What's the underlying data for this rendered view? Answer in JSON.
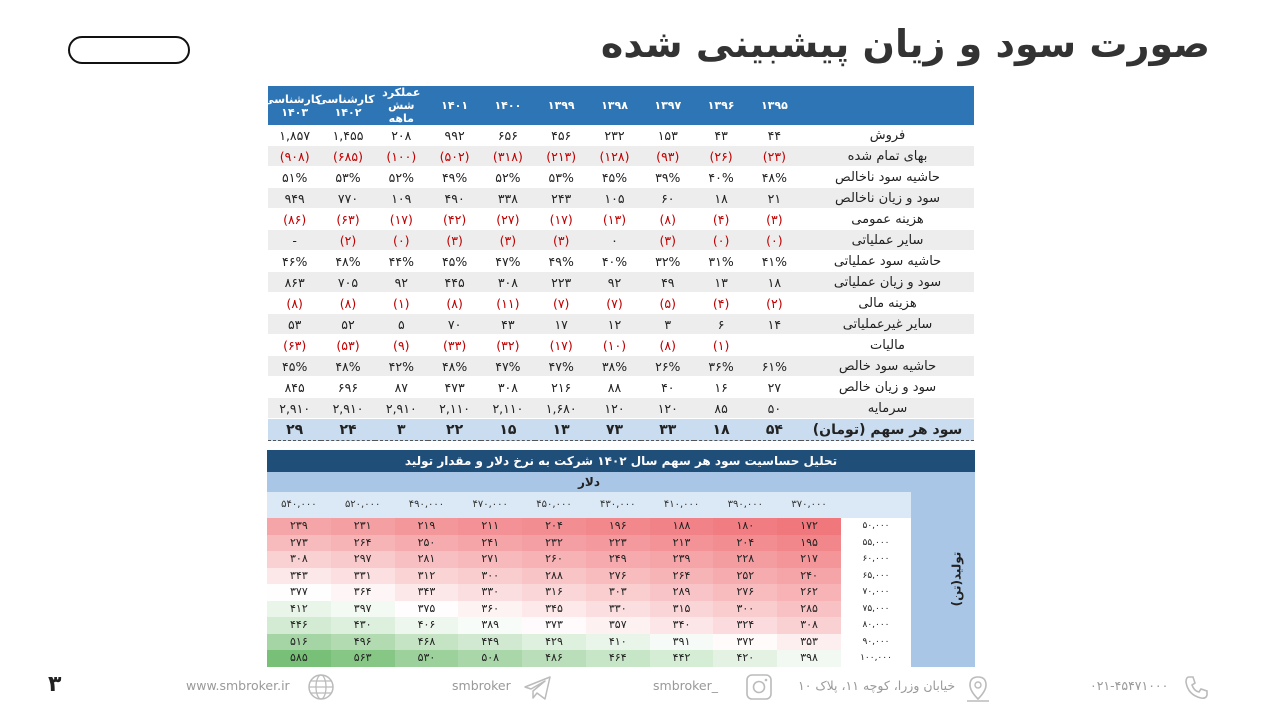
{
  "title": "صورت سود و زیان پیشبینی شده",
  "page_number": "۳",
  "table": {
    "headers": [
      "",
      "۱۳۹۵",
      "۱۳۹۶",
      "۱۳۹۷",
      "۱۳۹۸",
      "۱۳۹۹",
      "۱۴۰۰",
      "۱۴۰۱",
      "عملکرد شش ماهه",
      "کارشناسی ۱۴۰۲",
      "کارشناسی ۱۴۰۳"
    ],
    "rows": [
      {
        "label": "فروش",
        "values": [
          "۴۴",
          "۴۳",
          "۱۵۳",
          "۲۳۲",
          "۴۵۶",
          "۶۵۶",
          "۹۹۲",
          "۲۰۸",
          "۱,۴۵۵",
          "۱,۸۵۷"
        ]
      },
      {
        "label": "بهای تمام شده",
        "neg": true,
        "values": [
          "(۲۳)",
          "(۲۶)",
          "(۹۳)",
          "(۱۲۸)",
          "(۲۱۳)",
          "(۳۱۸)",
          "(۵۰۲)",
          "(۱۰۰)",
          "(۶۸۵)",
          "(۹۰۸)"
        ]
      },
      {
        "label": "حاشیه سود ناخالص",
        "values": [
          "۴۸%",
          "۴۰%",
          "۳۹%",
          "۴۵%",
          "۵۳%",
          "۵۲%",
          "۴۹%",
          "۵۲%",
          "۵۳%",
          "۵۱%"
        ]
      },
      {
        "label": "سود و زیان ناخالص",
        "values": [
          "۲۱",
          "۱۸",
          "۶۰",
          "۱۰۵",
          "۲۴۳",
          "۳۳۸",
          "۴۹۰",
          "۱۰۹",
          "۷۷۰",
          "۹۴۹"
        ]
      },
      {
        "label": "هزینه عمومی",
        "neg": true,
        "values": [
          "(۳)",
          "(۴)",
          "(۸)",
          "(۱۳)",
          "(۱۷)",
          "(۲۷)",
          "(۴۲)",
          "(۱۷)",
          "(۶۳)",
          "(۸۶)"
        ]
      },
      {
        "label": "سایر عملیاتی",
        "neg": true,
        "values": [
          "(۰)",
          "(۰)",
          "(۳)",
          "۰",
          "(۳)",
          "(۳)",
          "(۳)",
          "(۰)",
          "(۲)",
          "-"
        ]
      },
      {
        "label": "حاشیه سود عملیاتی",
        "values": [
          "۴۱%",
          "۳۱%",
          "۳۲%",
          "۴۰%",
          "۴۹%",
          "۴۷%",
          "۴۵%",
          "۴۴%",
          "۴۸%",
          "۴۶%"
        ]
      },
      {
        "label": "سود و زیان عملیاتی",
        "values": [
          "۱۸",
          "۱۳",
          "۴۹",
          "۹۲",
          "۲۲۳",
          "۳۰۸",
          "۴۴۵",
          "۹۲",
          "۷۰۵",
          "۸۶۳"
        ]
      },
      {
        "label": "هزینه مالی",
        "neg": true,
        "values": [
          "(۲)",
          "(۴)",
          "(۵)",
          "(۷)",
          "(۷)",
          "(۱۱)",
          "(۸)",
          "(۱)",
          "(۸)",
          "(۸)"
        ]
      },
      {
        "label": "سایر غیرعملیاتی",
        "values": [
          "۱۴",
          "۶",
          "۳",
          "۱۲",
          "۱۷",
          "۴۳",
          "۷۰",
          "۵",
          "۵۲",
          "۵۳"
        ]
      },
      {
        "label": "مالیات",
        "neg": true,
        "values": [
          "",
          "(۱)",
          "(۸)",
          "(۱۰)",
          "(۱۷)",
          "(۳۲)",
          "(۳۳)",
          "(۹)",
          "(۵۳)",
          "(۶۳)"
        ]
      },
      {
        "label": "حاشیه سود خالص",
        "values": [
          "۶۱%",
          "۳۶%",
          "۲۶%",
          "۳۸%",
          "۴۷%",
          "۴۷%",
          "۴۸%",
          "۴۲%",
          "۴۸%",
          "۴۵%"
        ]
      },
      {
        "label": "سود و زیان خالص",
        "values": [
          "۲۷",
          "۱۶",
          "۴۰",
          "۸۸",
          "۲۱۶",
          "۳۰۸",
          "۴۷۳",
          "۸۷",
          "۶۹۶",
          "۸۴۵"
        ]
      },
      {
        "label": "سرمایه",
        "values": [
          "۵۰",
          "۸۵",
          "۱۲۰",
          "۱۲۰",
          "۱,۶۸۰",
          "۲,۱۱۰",
          "۲,۱۱۰",
          "۲,۹۱۰",
          "۲,۹۱۰",
          "۲,۹۱۰"
        ]
      }
    ],
    "eps": {
      "label": "سود هر سهم (تومان)",
      "values": [
        "۵۴",
        "۱۸",
        "۳۳",
        "۷۳",
        "۱۳",
        "۱۵",
        "۲۲",
        "۳",
        "۲۴",
        "۲۹"
      ]
    }
  },
  "sensitivity": {
    "title": "تحلیل حساسیت سود هر سهم سال ۱۴۰۲  شرکت به نرخ دلار و مقدار تولید",
    "col_axis_label": "دلار",
    "row_axis_label": "تولید(تن)",
    "columns": [
      "۳۷۰,۰۰۰",
      "۳۹۰,۰۰۰",
      "۴۱۰,۰۰۰",
      "۴۳۰,۰۰۰",
      "۴۵۰,۰۰۰",
      "۴۷۰,۰۰۰",
      "۴۹۰,۰۰۰",
      "۵۲۰,۰۰۰",
      "۵۴۰,۰۰۰"
    ],
    "rows": [
      {
        "label": "۵۰,۰۰۰",
        "values": [
          "۱۷۲",
          "۱۸۰",
          "۱۸۸",
          "۱۹۶",
          "۲۰۴",
          "۲۱۱",
          "۲۱۹",
          "۲۳۱",
          "۲۳۹"
        ],
        "nums": [
          172,
          180,
          188,
          196,
          204,
          211,
          219,
          231,
          239
        ]
      },
      {
        "label": "۵۵,۰۰۰",
        "values": [
          "۱۹۵",
          "۲۰۴",
          "۲۱۳",
          "۲۲۳",
          "۲۳۲",
          "۲۴۱",
          "۲۵۰",
          "۲۶۴",
          "۲۷۳"
        ],
        "nums": [
          195,
          204,
          213,
          223,
          232,
          241,
          250,
          264,
          273
        ]
      },
      {
        "label": "۶۰,۰۰۰",
        "values": [
          "۲۱۷",
          "۲۲۸",
          "۲۳۹",
          "۲۴۹",
          "۲۶۰",
          "۲۷۱",
          "۲۸۱",
          "۲۹۷",
          "۳۰۸"
        ],
        "nums": [
          217,
          228,
          239,
          249,
          260,
          271,
          281,
          297,
          308
        ]
      },
      {
        "label": "۶۵,۰۰۰",
        "values": [
          "۲۴۰",
          "۲۵۲",
          "۲۶۴",
          "۲۷۶",
          "۲۸۸",
          "۳۰۰",
          "۳۱۲",
          "۳۳۱",
          "۳۴۳"
        ],
        "nums": [
          240,
          252,
          264,
          276,
          288,
          300,
          312,
          331,
          343
        ]
      },
      {
        "label": "۷۰,۰۰۰",
        "values": [
          "۲۶۲",
          "۲۷۶",
          "۲۸۹",
          "۳۰۳",
          "۳۱۶",
          "۳۳۰",
          "۳۴۳",
          "۳۶۴",
          "۳۷۷"
        ],
        "nums": [
          262,
          276,
          289,
          303,
          316,
          330,
          343,
          364,
          377
        ]
      },
      {
        "label": "۷۵,۰۰۰",
        "values": [
          "۲۸۵",
          "۳۰۰",
          "۳۱۵",
          "۳۳۰",
          "۳۴۵",
          "۳۶۰",
          "۳۷۵",
          "۳۹۷",
          "۴۱۲"
        ],
        "nums": [
          285,
          300,
          315,
          330,
          345,
          360,
          375,
          397,
          412
        ]
      },
      {
        "label": "۸۰,۰۰۰",
        "values": [
          "۳۰۸",
          "۳۲۴",
          "۳۴۰",
          "۳۵۷",
          "۳۷۳",
          "۳۸۹",
          "۴۰۶",
          "۴۳۰",
          "۴۴۶"
        ],
        "nums": [
          308,
          324,
          340,
          357,
          373,
          389,
          406,
          430,
          446
        ]
      },
      {
        "label": "۹۰,۰۰۰",
        "values": [
          "۳۵۳",
          "۳۷۲",
          "۳۹۱",
          "۴۱۰",
          "۴۲۹",
          "۴۴۹",
          "۴۶۸",
          "۴۹۶",
          "۵۱۶"
        ],
        "nums": [
          353,
          372,
          391,
          410,
          429,
          449,
          468,
          496,
          516
        ]
      },
      {
        "label": "۱۰۰,۰۰۰",
        "values": [
          "۳۹۸",
          "۴۲۰",
          "۴۴۲",
          "۴۶۴",
          "۴۸۶",
          "۵۰۸",
          "۵۳۰",
          "۵۶۳",
          "۵۸۵"
        ],
        "nums": [
          398,
          420,
          442,
          464,
          486,
          508,
          530,
          563,
          585
        ]
      }
    ]
  },
  "footer": {
    "phone": "۰۲۱-۴۵۴۷۱۰۰۰",
    "address": "خیابان وزرا، کوچه ۱۱، پلاک ۱۰",
    "instagram": "smbroker_",
    "telegram": "smbroker",
    "website": "www.smbroker.ir"
  }
}
